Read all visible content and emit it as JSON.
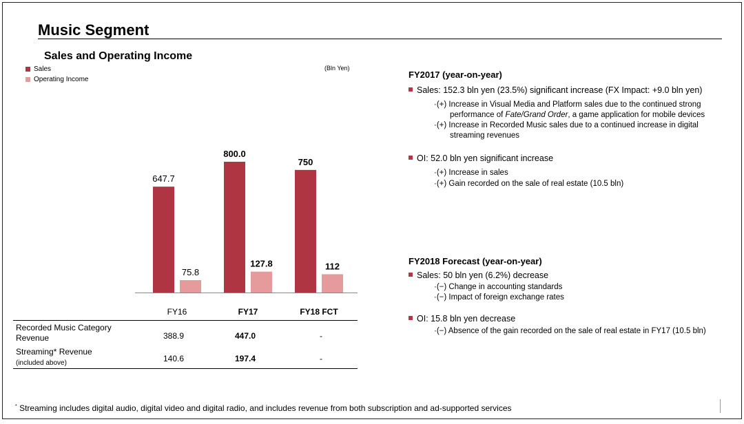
{
  "page": {
    "title": "Music Segment",
    "subtitle": "Sales and Operating Income",
    "unit": "(Bln Yen)"
  },
  "legend": {
    "sales": "Sales",
    "oi": "Operating Income"
  },
  "colors": {
    "sales": "#b03543",
    "oi": "#e59a9c",
    "bullet": "#b53545"
  },
  "chart_data": {
    "type": "bar",
    "title": "Sales and Operating Income",
    "categories": [
      "FY16",
      "FY17",
      "FY18 FCT"
    ],
    "series": [
      {
        "name": "Sales",
        "values": [
          647.7,
          800.0,
          750
        ],
        "labels": [
          "647.7",
          "800.0",
          "750"
        ]
      },
      {
        "name": "Operating Income",
        "values": [
          75.8,
          127.8,
          112
        ],
        "labels": [
          "75.8",
          "127.8",
          "112"
        ]
      }
    ],
    "bold_categories": [
      false,
      true,
      true
    ],
    "ylabel": "Bln Yen",
    "legend_position": "top-left"
  },
  "table": {
    "rows": [
      {
        "label": "Recorded Music Category",
        "label2": "Revenue",
        "values": [
          "388.9",
          "447.0",
          "-"
        ]
      },
      {
        "label": "Streaming* Revenue",
        "label2": "(included above)",
        "values": [
          "140.6",
          "197.4",
          "-"
        ]
      }
    ]
  },
  "fy2017": {
    "heading": "FY2017 (year-on-year)",
    "sales": "Sales: 152.3 bln yen (23.5%) significant increase (FX Impact: +9.0 bln yen)",
    "sales_sub1a": "·(+) Increase in Visual Media and Platform sales due to the continued strong",
    "sales_sub1b_pre": "performance of ",
    "sales_sub1b_em": "Fate/Grand Order",
    "sales_sub1b_post": ", a game application for mobile devices",
    "sales_sub2a": "·(+) Increase in Recorded Music sales due to a continued increase in digital",
    "sales_sub2b": "streaming revenues",
    "oi": "OI: 52.0 bln yen significant increase",
    "oi_sub1": "·(+) Increase in sales",
    "oi_sub2": "·(+) Gain recorded on the sale of real estate (10.5 bln)"
  },
  "fy2018": {
    "heading": "FY2018 Forecast (year-on-year)",
    "sales": "Sales: 50 bln yen (6.2%) decrease",
    "sales_sub1": "·(−) Change in accounting standards",
    "sales_sub2": "·(−) Impact of foreign exchange rates",
    "oi": "OI: 15.8 bln yen decrease",
    "oi_sub1": "·(−) Absence of the gain recorded on the sale of real estate in FY17 (10.5 bln)"
  },
  "footnote": {
    "mark": "*",
    "text": " Streaming includes digital audio, digital video and digital radio, and includes revenue from both subscription and ad-supported services"
  }
}
